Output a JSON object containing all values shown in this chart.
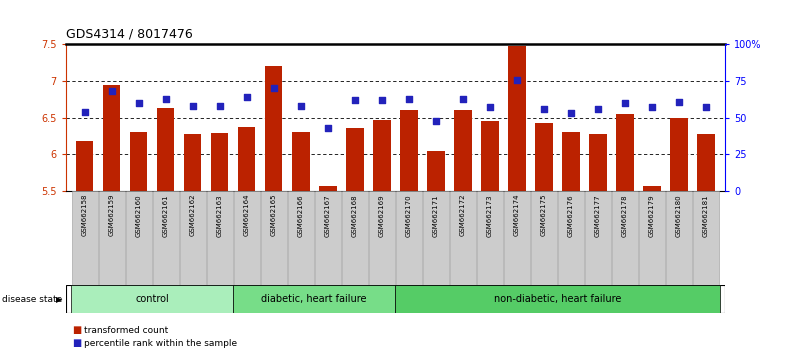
{
  "title": "GDS4314 / 8017476",
  "samples": [
    "GSM662158",
    "GSM662159",
    "GSM662160",
    "GSM662161",
    "GSM662162",
    "GSM662163",
    "GSM662164",
    "GSM662165",
    "GSM662166",
    "GSM662167",
    "GSM662168",
    "GSM662169",
    "GSM662170",
    "GSM662171",
    "GSM662172",
    "GSM662173",
    "GSM662174",
    "GSM662175",
    "GSM662176",
    "GSM662177",
    "GSM662178",
    "GSM662179",
    "GSM662180",
    "GSM662181"
  ],
  "bar_values": [
    6.18,
    6.95,
    6.3,
    6.63,
    6.28,
    6.29,
    6.38,
    7.2,
    6.3,
    5.57,
    6.36,
    6.47,
    6.6,
    6.05,
    6.6,
    6.45,
    7.47,
    6.43,
    6.3,
    6.28,
    6.55,
    5.57,
    6.5,
    6.28
  ],
  "blue_pct": [
    54,
    68,
    60,
    63,
    58,
    58,
    64,
    70,
    58,
    43,
    62,
    62,
    63,
    48,
    63,
    57,
    76,
    56,
    53,
    56,
    60,
    57,
    61,
    57
  ],
  "ylim_left": [
    5.5,
    7.5
  ],
  "ylim_right": [
    0,
    100
  ],
  "yticks_left": [
    5.5,
    6.0,
    6.5,
    7.0,
    7.5
  ],
  "ytick_labels_left": [
    "5.5",
    "6",
    "6.5",
    "7",
    "7.5"
  ],
  "yticks_right": [
    0,
    25,
    50,
    75,
    100
  ],
  "ytick_labels_right": [
    "0",
    "25",
    "50",
    "75",
    "100%"
  ],
  "bar_color": "#BB2200",
  "dot_color": "#2222BB",
  "grid_yticks": [
    6.0,
    6.5,
    7.0
  ],
  "groups": [
    {
      "label": "control",
      "start": 0,
      "end": 5,
      "color": "#aaeebb"
    },
    {
      "label": "diabetic, heart failure",
      "start": 6,
      "end": 11,
      "color": "#77dd88"
    },
    {
      "label": "non-diabetic, heart failure",
      "start": 12,
      "end": 23,
      "color": "#55cc66"
    }
  ],
  "legend_bar_label": "transformed count",
  "legend_dot_label": "percentile rank within the sample",
  "disease_state_label": "disease state",
  "tick_bg_color": "#cccccc"
}
